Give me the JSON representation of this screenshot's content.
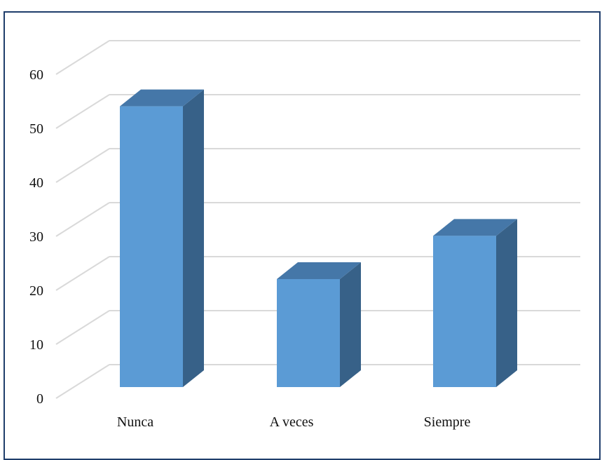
{
  "chart_data": {
    "type": "bar",
    "categories": [
      "Nunca",
      "A veces",
      "Siempre"
    ],
    "values": [
      52,
      20,
      28
    ],
    "title": "",
    "xlabel": "",
    "ylabel": "",
    "ylim": [
      0,
      60
    ],
    "yticks": [
      0,
      10,
      20,
      30,
      40,
      50,
      60
    ],
    "grid": true,
    "style": "3d-column",
    "colors": {
      "front": "#5b9bd5",
      "side": "#376188",
      "top": "#4577a8",
      "grid": "#d9d9d9",
      "frame": "#1f3d6b"
    }
  }
}
